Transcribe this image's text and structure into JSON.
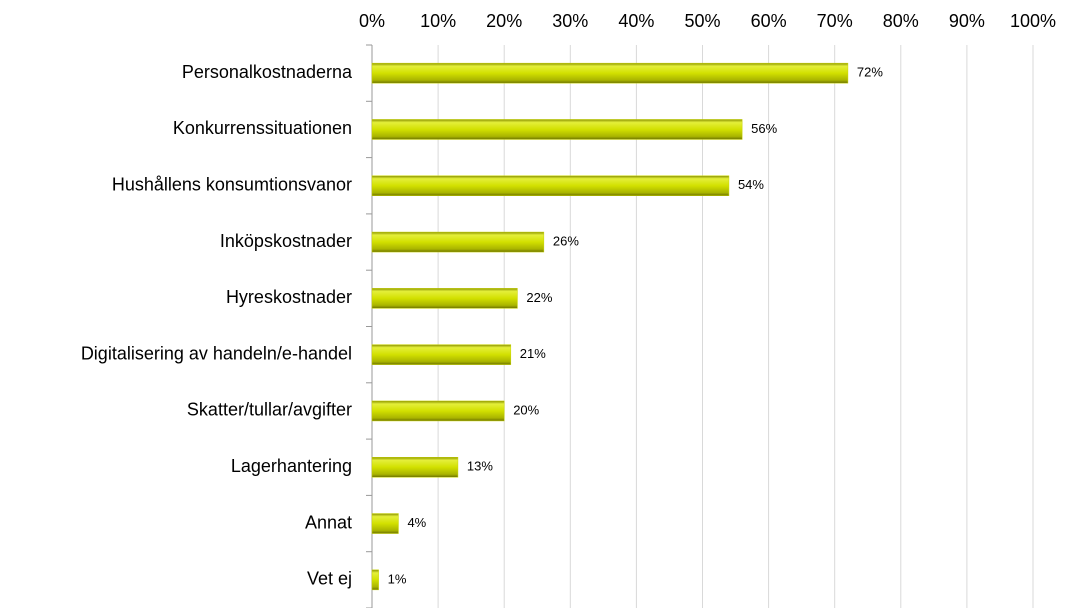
{
  "chart_data": {
    "type": "bar",
    "orientation": "horizontal",
    "categories": [
      "Personalkostnaderna",
      "Konkurrenssituationen",
      "Hushållens konsumtionsvanor",
      "Inköpskostnader",
      "Hyreskostnader",
      "Digitalisering av handeln/e-handel",
      "Skatter/tullar/avgifter",
      "Lagerhantering",
      "Annat",
      "Vet ej"
    ],
    "values": [
      72,
      56,
      54,
      26,
      22,
      21,
      20,
      13,
      4,
      1
    ],
    "value_labels": [
      "72%",
      "56%",
      "54%",
      "26%",
      "22%",
      "21%",
      "20%",
      "13%",
      "4%",
      "1%"
    ],
    "color": "#c8d400",
    "xlim": [
      0,
      100
    ],
    "xticks": [
      {
        "value": 0,
        "label": "0%"
      },
      {
        "value": 10,
        "label": "10%"
      },
      {
        "value": 20,
        "label": "20%"
      },
      {
        "value": 30,
        "label": "30%"
      },
      {
        "value": 40,
        "label": "40%"
      },
      {
        "value": 50,
        "label": "50%"
      },
      {
        "value": 60,
        "label": "60%"
      },
      {
        "value": 70,
        "label": "70%"
      },
      {
        "value": 80,
        "label": "80%"
      },
      {
        "value": 90,
        "label": "90%"
      },
      {
        "value": 100,
        "label": "100%"
      }
    ],
    "grid": true
  }
}
